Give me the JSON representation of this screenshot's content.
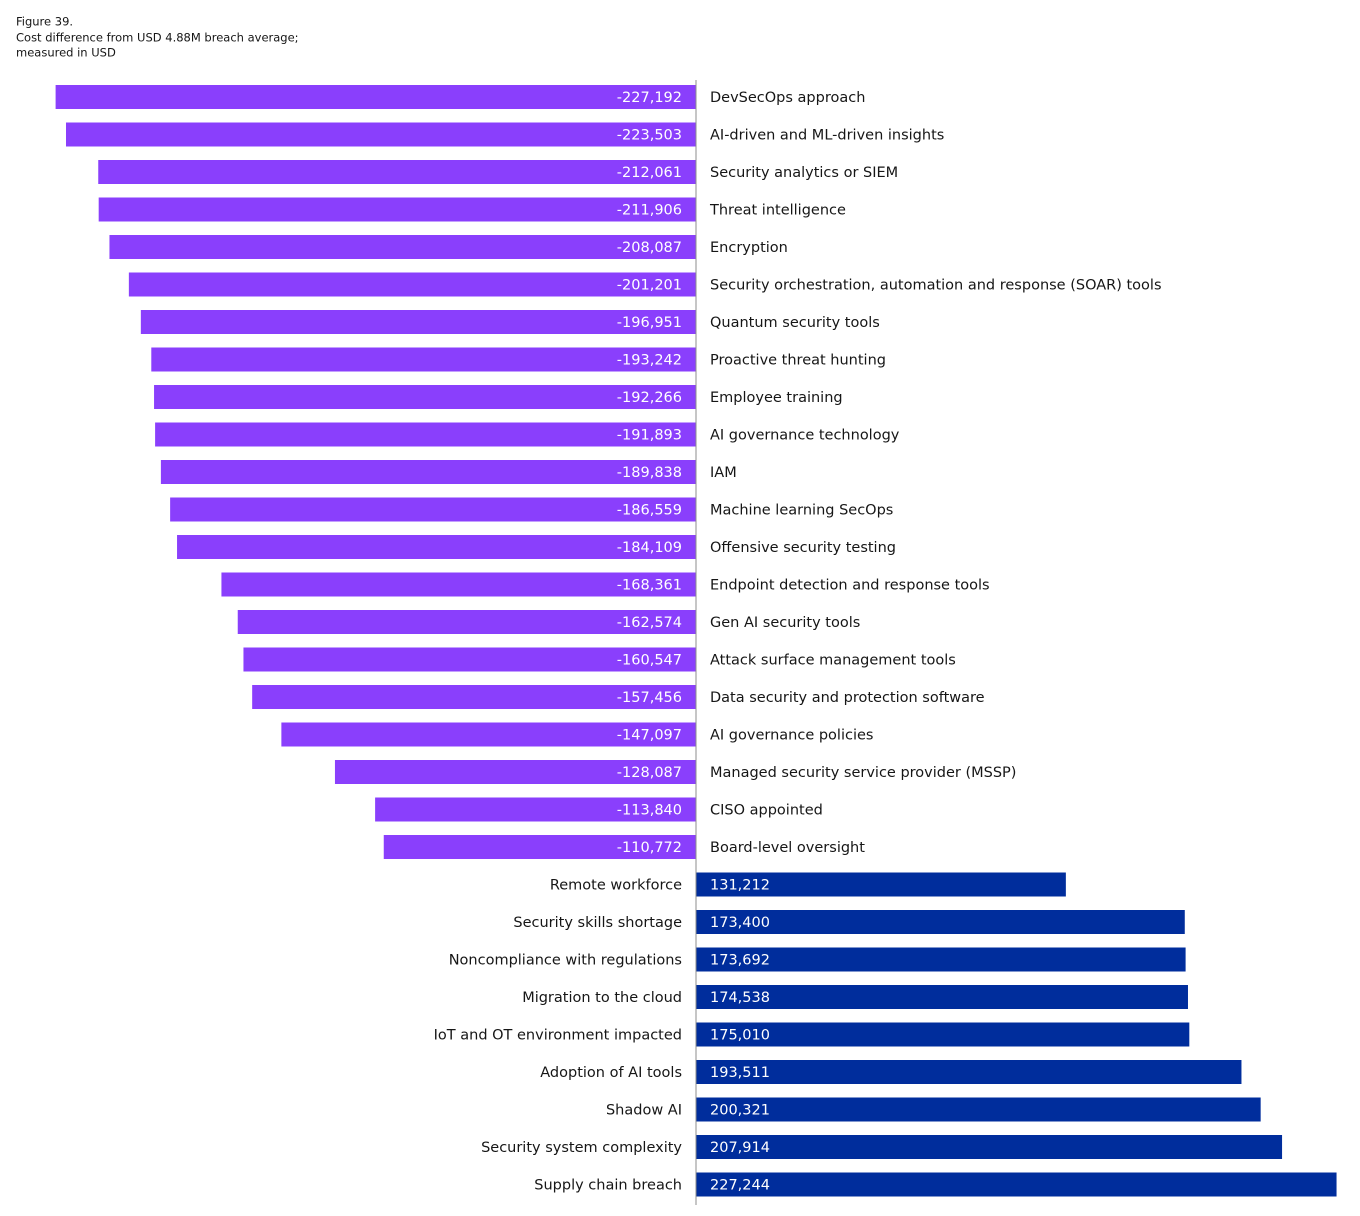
{
  "chart_data": {
    "type": "bar",
    "orientation": "horizontal",
    "title": "Figure 39.",
    "subtitle": [
      "Cost difference from USD 4.88M breach average;",
      "measured in USD"
    ],
    "categories": [
      "DevSecOps approach",
      "AI-driven and ML-driven insights",
      "Security analytics or SIEM",
      "Threat intelligence",
      "Encryption",
      "Security orchestration, automation and response (SOAR) tools",
      "Quantum security tools",
      "Proactive threat hunting",
      "Employee training",
      "AI governance technology",
      "IAM",
      "Machine learning SecOps",
      "Offensive security testing",
      "Endpoint detection and response tools",
      "Gen AI security tools",
      "Attack surface management tools",
      "Data security and protection software",
      "AI governance policies",
      "Managed security service provider (MSSP)",
      "CISO appointed",
      "Board-level oversight",
      "Remote workforce",
      "Security skills shortage",
      "Noncompliance with regulations",
      "Migration to the cloud",
      "IoT and OT environment impacted",
      "Adoption of AI tools",
      "Shadow AI",
      "Security system complexity",
      "Supply chain breach"
    ],
    "values": [
      -227192,
      -223503,
      -212061,
      -211906,
      -208087,
      -201201,
      -196951,
      -193242,
      -192266,
      -191893,
      -189838,
      -186559,
      -184109,
      -168361,
      -162574,
      -160547,
      -157456,
      -147097,
      -128087,
      -113840,
      -110772,
      131212,
      173400,
      173692,
      174538,
      175010,
      193511,
      200321,
      207914,
      227244
    ],
    "value_labels": [
      "-227,192",
      "-223,503",
      "-212,061",
      "-211,906",
      "-208,087",
      "-201,201",
      "-196,951",
      "-193,242",
      "-192,266",
      "-191,893",
      "-189,838",
      "-186,559",
      "-184,109",
      "-168,361",
      "-162,574",
      "-160,547",
      "-157,456",
      "-147,097",
      "-128,087",
      "-113,840",
      "-110,772",
      "131,212",
      "173,400",
      "173,692",
      "174,538",
      "175,010",
      "193,511",
      "200,321",
      "207,914",
      "227,244"
    ],
    "negative_color": "#8a3ffc",
    "positive_color": "#002d9c",
    "xlim": [
      -234500,
      234500
    ]
  }
}
